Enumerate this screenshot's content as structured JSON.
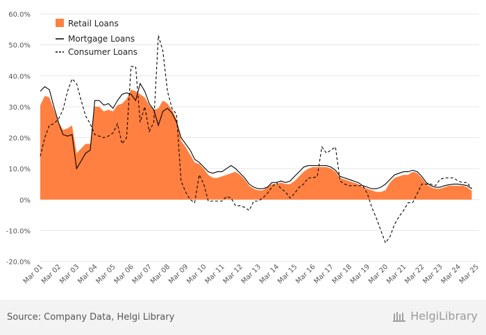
{
  "chart_data": {
    "type": "area",
    "title": "",
    "xlabel": "",
    "ylabel": "",
    "ylim": [
      -20,
      60
    ],
    "yticks": [
      "60.0%",
      "50.0%",
      "40.0%",
      "30.0%",
      "20.0%",
      "10.0%",
      "0%",
      "-10.0%",
      "-20.0%"
    ],
    "ytick_values": [
      60,
      50,
      40,
      30,
      20,
      10,
      0,
      -10,
      -20
    ],
    "xticks": [
      "Mar 01",
      "Mar 02",
      "Mar 03",
      "Mar 04",
      "Mar 05",
      "Mar 06",
      "Mar 07",
      "Mar 08",
      "Mar 09",
      "Mar 10",
      "Mar 11",
      "Mar 12",
      "Mar 13",
      "Mar 14",
      "Mar 15",
      "Mar 16",
      "Mar 17",
      "Mar 18",
      "Mar 19",
      "Mar 20",
      "Mar 21",
      "Mar 22",
      "Mar 23",
      "Mar 24",
      "Mar 25"
    ],
    "x_start_year": 2001,
    "x_end_year": 2025,
    "grid": "horizontal",
    "legend_position": "top-left",
    "colors": {
      "retail": "#ff8040",
      "mortgage": "#000000",
      "consumer": "#000000",
      "grid": "#e6e6e6",
      "axis_text": "#555555"
    },
    "series": [
      {
        "name": "Retail Loans",
        "style": "area",
        "points": [
          [
            2001.0,
            30.5
          ],
          [
            2001.25,
            33.5
          ],
          [
            2001.5,
            33.0
          ],
          [
            2001.75,
            29.0
          ],
          [
            2002.0,
            25.0
          ],
          [
            2002.25,
            22.5
          ],
          [
            2002.5,
            23.0
          ],
          [
            2002.75,
            24.0
          ],
          [
            2003.0,
            15.0
          ],
          [
            2003.25,
            16.5
          ],
          [
            2003.5,
            18.0
          ],
          [
            2003.75,
            18.0
          ],
          [
            2004.0,
            30.0
          ],
          [
            2004.25,
            30.0
          ],
          [
            2004.5,
            28.5
          ],
          [
            2004.75,
            29.0
          ],
          [
            2005.0,
            28.5
          ],
          [
            2005.25,
            30.5
          ],
          [
            2005.5,
            31.0
          ],
          [
            2005.75,
            32.5
          ],
          [
            2006.0,
            35.5
          ],
          [
            2006.25,
            35.0
          ],
          [
            2006.5,
            34.0
          ],
          [
            2006.75,
            33.0
          ],
          [
            2007.0,
            30.5
          ],
          [
            2007.25,
            29.0
          ],
          [
            2007.5,
            29.5
          ],
          [
            2007.75,
            32.0
          ],
          [
            2008.0,
            31.0
          ],
          [
            2008.25,
            29.0
          ],
          [
            2008.5,
            26.0
          ],
          [
            2008.75,
            19.0
          ],
          [
            2009.0,
            17.0
          ],
          [
            2009.25,
            14.5
          ],
          [
            2009.5,
            12.0
          ],
          [
            2009.75,
            11.5
          ],
          [
            2010.0,
            10.0
          ],
          [
            2010.25,
            8.0
          ],
          [
            2010.5,
            7.0
          ],
          [
            2010.75,
            7.0
          ],
          [
            2011.0,
            7.5
          ],
          [
            2011.25,
            8.0
          ],
          [
            2011.5,
            8.5
          ],
          [
            2011.75,
            9.0
          ],
          [
            2012.0,
            8.0
          ],
          [
            2012.25,
            6.5
          ],
          [
            2012.5,
            4.5
          ],
          [
            2012.75,
            3.5
          ],
          [
            2013.0,
            3.0
          ],
          [
            2013.25,
            3.0
          ],
          [
            2013.5,
            4.0
          ],
          [
            2013.75,
            5.0
          ],
          [
            2014.0,
            5.0
          ],
          [
            2014.25,
            5.5
          ],
          [
            2014.5,
            5.0
          ],
          [
            2014.75,
            5.0
          ],
          [
            2015.0,
            6.0
          ],
          [
            2015.25,
            7.5
          ],
          [
            2015.5,
            9.0
          ],
          [
            2015.75,
            10.0
          ],
          [
            2016.0,
            10.5
          ],
          [
            2016.25,
            10.5
          ],
          [
            2016.5,
            10.5
          ],
          [
            2016.75,
            10.5
          ],
          [
            2017.0,
            10.0
          ],
          [
            2017.25,
            9.0
          ],
          [
            2017.5,
            7.0
          ],
          [
            2017.75,
            6.5
          ],
          [
            2018.0,
            6.0
          ],
          [
            2018.25,
            5.5
          ],
          [
            2018.5,
            5.0
          ],
          [
            2018.75,
            4.0
          ],
          [
            2019.0,
            3.5
          ],
          [
            2019.25,
            3.0
          ],
          [
            2019.5,
            2.5
          ],
          [
            2019.75,
            2.5
          ],
          [
            2020.0,
            3.0
          ],
          [
            2020.25,
            5.5
          ],
          [
            2020.5,
            7.0
          ],
          [
            2020.75,
            7.5
          ],
          [
            2021.0,
            8.0
          ],
          [
            2021.25,
            8.0
          ],
          [
            2021.5,
            9.0
          ],
          [
            2021.75,
            8.5
          ],
          [
            2022.0,
            7.0
          ],
          [
            2022.25,
            5.0
          ],
          [
            2022.5,
            4.0
          ],
          [
            2022.75,
            3.5
          ],
          [
            2023.0,
            3.5
          ],
          [
            2023.25,
            4.0
          ],
          [
            2023.5,
            4.5
          ],
          [
            2023.75,
            4.5
          ],
          [
            2024.0,
            4.5
          ],
          [
            2024.25,
            4.5
          ],
          [
            2024.5,
            4.0
          ],
          [
            2024.75,
            2.8
          ]
        ]
      },
      {
        "name": "Mortgage Loans",
        "style": "solid",
        "points": [
          [
            2001.0,
            35.0
          ],
          [
            2001.25,
            36.5
          ],
          [
            2001.5,
            35.5
          ],
          [
            2001.75,
            30.0
          ],
          [
            2002.0,
            25.0
          ],
          [
            2002.25,
            21.0
          ],
          [
            2002.5,
            20.5
          ],
          [
            2002.75,
            21.0
          ],
          [
            2003.0,
            10.0
          ],
          [
            2003.25,
            12.5
          ],
          [
            2003.5,
            15.0
          ],
          [
            2003.75,
            16.0
          ],
          [
            2004.0,
            32.0
          ],
          [
            2004.25,
            32.0
          ],
          [
            2004.5,
            30.5
          ],
          [
            2004.75,
            31.0
          ],
          [
            2005.0,
            29.5
          ],
          [
            2005.25,
            32.0
          ],
          [
            2005.5,
            34.0
          ],
          [
            2005.75,
            34.5
          ],
          [
            2006.0,
            34.0
          ],
          [
            2006.25,
            32.0
          ],
          [
            2006.5,
            37.5
          ],
          [
            2006.75,
            35.0
          ],
          [
            2007.0,
            31.0
          ],
          [
            2007.25,
            29.0
          ],
          [
            2007.5,
            24.0
          ],
          [
            2007.75,
            28.5
          ],
          [
            2008.0,
            29.5
          ],
          [
            2008.25,
            28.0
          ],
          [
            2008.5,
            25.0
          ],
          [
            2008.75,
            20.0
          ],
          [
            2009.0,
            18.0
          ],
          [
            2009.25,
            16.0
          ],
          [
            2009.5,
            13.0
          ],
          [
            2009.75,
            12.0
          ],
          [
            2010.0,
            10.5
          ],
          [
            2010.25,
            9.0
          ],
          [
            2010.5,
            8.5
          ],
          [
            2010.75,
            9.0
          ],
          [
            2011.0,
            9.0
          ],
          [
            2011.25,
            10.0
          ],
          [
            2011.5,
            11.0
          ],
          [
            2011.75,
            10.0
          ],
          [
            2012.0,
            8.5
          ],
          [
            2012.25,
            7.0
          ],
          [
            2012.5,
            5.0
          ],
          [
            2012.75,
            4.0
          ],
          [
            2013.0,
            3.5
          ],
          [
            2013.25,
            3.5
          ],
          [
            2013.5,
            4.0
          ],
          [
            2013.75,
            5.5
          ],
          [
            2014.0,
            5.5
          ],
          [
            2014.25,
            6.0
          ],
          [
            2014.5,
            5.5
          ],
          [
            2014.75,
            6.0
          ],
          [
            2015.0,
            7.5
          ],
          [
            2015.25,
            9.0
          ],
          [
            2015.5,
            10.5
          ],
          [
            2015.75,
            11.0
          ],
          [
            2016.0,
            11.0
          ],
          [
            2016.25,
            11.0
          ],
          [
            2016.5,
            11.0
          ],
          [
            2016.75,
            11.0
          ],
          [
            2017.0,
            10.5
          ],
          [
            2017.25,
            9.5
          ],
          [
            2017.5,
            7.5
          ],
          [
            2017.75,
            7.0
          ],
          [
            2018.0,
            6.5
          ],
          [
            2018.25,
            6.0
          ],
          [
            2018.5,
            5.5
          ],
          [
            2018.75,
            4.5
          ],
          [
            2019.0,
            4.0
          ],
          [
            2019.25,
            3.5
          ],
          [
            2019.5,
            3.5
          ],
          [
            2019.75,
            4.0
          ],
          [
            2020.0,
            5.0
          ],
          [
            2020.25,
            6.5
          ],
          [
            2020.5,
            8.0
          ],
          [
            2020.75,
            8.5
          ],
          [
            2021.0,
            9.0
          ],
          [
            2021.25,
            9.0
          ],
          [
            2021.5,
            9.5
          ],
          [
            2021.75,
            9.0
          ],
          [
            2022.0,
            7.5
          ],
          [
            2022.25,
            5.5
          ],
          [
            2022.5,
            4.5
          ],
          [
            2022.75,
            4.0
          ],
          [
            2023.0,
            4.0
          ],
          [
            2023.25,
            4.5
          ],
          [
            2023.5,
            4.8
          ],
          [
            2023.75,
            5.0
          ],
          [
            2024.0,
            5.0
          ],
          [
            2024.25,
            4.8
          ],
          [
            2024.5,
            4.5
          ],
          [
            2024.75,
            3.5
          ]
        ]
      },
      {
        "name": "Consumer Loans",
        "style": "dashed",
        "points": [
          [
            2001.0,
            14.0
          ],
          [
            2001.25,
            20.0
          ],
          [
            2001.5,
            24.0
          ],
          [
            2001.75,
            24.5
          ],
          [
            2002.0,
            26.0
          ],
          [
            2002.25,
            29.0
          ],
          [
            2002.5,
            35.0
          ],
          [
            2002.75,
            39.0
          ],
          [
            2003.0,
            37.5
          ],
          [
            2003.25,
            32.0
          ],
          [
            2003.5,
            27.0
          ],
          [
            2003.75,
            24.5
          ],
          [
            2004.0,
            21.0
          ],
          [
            2004.25,
            20.5
          ],
          [
            2004.5,
            20.0
          ],
          [
            2004.75,
            20.5
          ],
          [
            2005.0,
            21.5
          ],
          [
            2005.25,
            24.5
          ],
          [
            2005.5,
            18.0
          ],
          [
            2005.75,
            20.0
          ],
          [
            2006.0,
            43.0
          ],
          [
            2006.25,
            43.0
          ],
          [
            2006.5,
            25.0
          ],
          [
            2006.75,
            30.0
          ],
          [
            2007.0,
            22.0
          ],
          [
            2007.25,
            25.0
          ],
          [
            2007.5,
            53.0
          ],
          [
            2007.75,
            48.0
          ],
          [
            2008.0,
            35.0
          ],
          [
            2008.25,
            29.5
          ],
          [
            2008.5,
            27.5
          ],
          [
            2008.75,
            6.0
          ],
          [
            2009.0,
            2.5
          ],
          [
            2009.25,
            0.0
          ],
          [
            2009.5,
            -1.0
          ],
          [
            2009.75,
            8.0
          ],
          [
            2010.0,
            5.0
          ],
          [
            2010.25,
            -0.5
          ],
          [
            2010.5,
            -0.5
          ],
          [
            2010.75,
            -0.5
          ],
          [
            2011.0,
            -0.5
          ],
          [
            2011.25,
            1.0
          ],
          [
            2011.5,
            0.5
          ],
          [
            2011.75,
            -2.0
          ],
          [
            2012.0,
            -2.0
          ],
          [
            2012.25,
            -2.5
          ],
          [
            2012.5,
            -3.5
          ],
          [
            2012.75,
            -0.5
          ],
          [
            2013.0,
            -0.5
          ],
          [
            2013.25,
            0.5
          ],
          [
            2013.5,
            2.0
          ],
          [
            2013.75,
            4.0
          ],
          [
            2014.0,
            5.5
          ],
          [
            2014.25,
            3.5
          ],
          [
            2014.5,
            2.5
          ],
          [
            2014.75,
            0.5
          ],
          [
            2015.0,
            2.0
          ],
          [
            2015.25,
            4.0
          ],
          [
            2015.5,
            5.0
          ],
          [
            2015.75,
            7.0
          ],
          [
            2016.0,
            7.0
          ],
          [
            2016.25,
            7.5
          ],
          [
            2016.5,
            17.0
          ],
          [
            2016.75,
            15.0
          ],
          [
            2017.0,
            16.0
          ],
          [
            2017.25,
            17.0
          ],
          [
            2017.5,
            6.0
          ],
          [
            2017.75,
            5.0
          ],
          [
            2018.0,
            4.5
          ],
          [
            2018.25,
            4.5
          ],
          [
            2018.5,
            4.5
          ],
          [
            2018.75,
            4.5
          ],
          [
            2019.0,
            2.0
          ],
          [
            2019.25,
            -2.5
          ],
          [
            2019.5,
            -6.0
          ],
          [
            2019.75,
            -10.0
          ],
          [
            2020.0,
            -14.0
          ],
          [
            2020.25,
            -12.0
          ],
          [
            2020.5,
            -8.0
          ],
          [
            2020.75,
            -5.5
          ],
          [
            2021.0,
            -3.5
          ],
          [
            2021.25,
            -1.0
          ],
          [
            2021.5,
            -1.0
          ],
          [
            2021.75,
            2.0
          ],
          [
            2022.0,
            5.0
          ],
          [
            2022.25,
            5.0
          ],
          [
            2022.5,
            5.0
          ],
          [
            2022.75,
            4.5
          ],
          [
            2023.0,
            6.5
          ],
          [
            2023.25,
            7.0
          ],
          [
            2023.5,
            7.0
          ],
          [
            2023.75,
            7.0
          ],
          [
            2024.0,
            6.0
          ],
          [
            2024.25,
            5.5
          ],
          [
            2024.5,
            5.5
          ],
          [
            2024.75,
            3.5
          ]
        ]
      }
    ]
  },
  "footer": {
    "source": "Source: Company Data, Helgi Library",
    "brand": "HelgiLibrary"
  }
}
